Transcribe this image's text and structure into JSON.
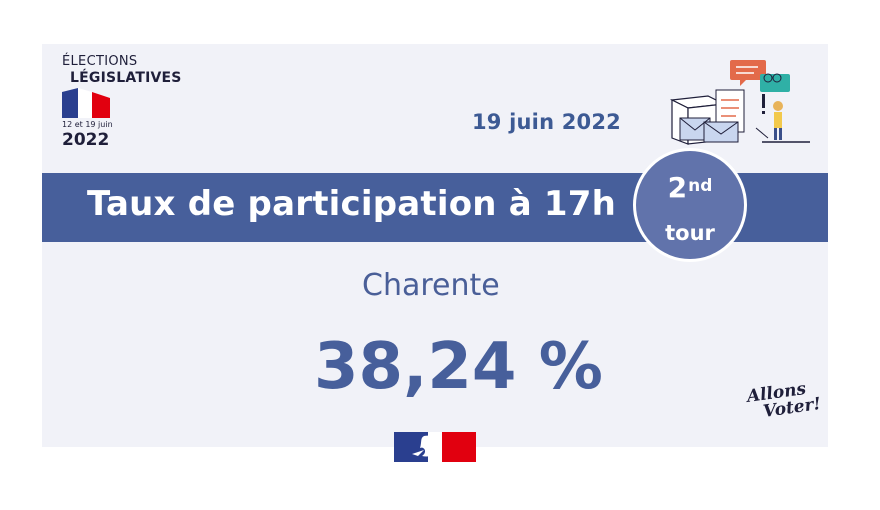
{
  "logo": {
    "line1": "ÉLECTIONS",
    "line2": "LÉGISLATIVES",
    "dates": "12 et 19 juin",
    "year": "2022",
    "flag_colors": [
      "#2a3f8f",
      "#ffffff",
      "#e1000f"
    ]
  },
  "date": "19 juin 2022",
  "title": "Taux de participation à 17h",
  "round": {
    "number": "2",
    "suffix": "nd",
    "word": "tour"
  },
  "department": "Charente",
  "participation": "38,24 %",
  "slogan": {
    "line1": "Allons",
    "line2": "Voter!"
  },
  "colors": {
    "band": "#475f9b",
    "badge": "#6173ab",
    "text_blue": "#475f9b",
    "card_bg": "#f1f2f8"
  },
  "icons": {
    "illustration": "ballot-box-illustration",
    "emblem": "marianne-logo"
  }
}
